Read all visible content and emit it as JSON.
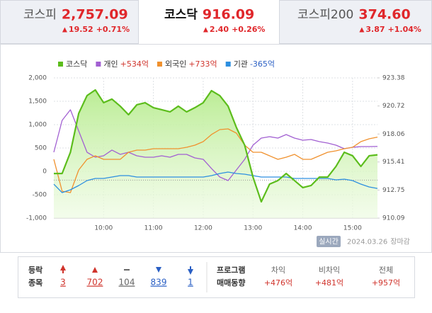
{
  "tabs": [
    {
      "name": "코스피",
      "value": "2,757.09",
      "change": "19.52",
      "rate": "+0.71%"
    },
    {
      "name": "코스닥",
      "value": "916.09",
      "change": "2.40",
      "rate": "+0.26%",
      "active": true
    },
    {
      "name": "코스피200",
      "value": "374.60",
      "change": "3.87",
      "rate": "+1.04%"
    }
  ],
  "chart_data": {
    "type": "line",
    "x": [
      "09:00",
      "09:10",
      "09:20",
      "09:30",
      "09:40",
      "09:50",
      "10:00",
      "10:10",
      "10:20",
      "10:30",
      "10:40",
      "10:50",
      "11:00",
      "11:10",
      "11:20",
      "11:30",
      "11:40",
      "11:50",
      "12:00",
      "12:10",
      "12:20",
      "12:30",
      "12:40",
      "12:50",
      "13:00",
      "13:10",
      "13:20",
      "13:30",
      "13:40",
      "13:50",
      "14:00",
      "14:10",
      "14:20",
      "14:30",
      "14:40",
      "14:50",
      "15:00",
      "15:10",
      "15:20",
      "15:30"
    ],
    "xticks": [
      "10:00",
      "11:00",
      "12:00",
      "13:00",
      "14:00",
      "15:00"
    ],
    "ylim": [
      -1000,
      2000
    ],
    "yticks": [
      {
        "value": 2000,
        "label": "2,000"
      },
      {
        "value": 1500,
        "label": "1,500"
      },
      {
        "value": 1000,
        "label": "1,000"
      },
      500,
      0,
      -500,
      {
        "value": -1000,
        "label": "-1,000"
      }
    ],
    "y2lim": [
      910.09,
      923.38
    ],
    "y2ticks": [
      923.38,
      920.72,
      918.06,
      915.41,
      912.75,
      910.09
    ],
    "y2_reference": 913.69,
    "grid": true,
    "series": [
      {
        "name": "코스닥",
        "color": "#5cbd1c",
        "axis": "y2",
        "fill": true,
        "values": [
          914.32,
          914.32,
          916.33,
          920.02,
          921.7,
          922.24,
          921.03,
          921.37,
          920.7,
          919.89,
          920.83,
          921.03,
          920.56,
          920.36,
          920.16,
          920.7,
          920.16,
          920.56,
          921.03,
          922.17,
          921.7,
          920.7,
          918.68,
          917.0,
          913.98,
          911.64,
          913.31,
          913.65,
          914.32,
          913.65,
          912.98,
          913.18,
          913.98,
          913.98,
          914.99,
          916.33,
          916.0,
          914.99,
          916.0,
          916.09
        ]
      },
      {
        "name": "개인",
        "summary": "+534억",
        "summary_color": "#d0342c",
        "color": "#a260d2",
        "values": [
          409,
          1091,
          1318,
          864,
          409,
          303,
          333,
          455,
          364,
          409,
          333,
          303,
          303,
          333,
          303,
          364,
          364,
          288,
          258,
          61,
          -121,
          -197,
          30,
          258,
          561,
          712,
          742,
          712,
          788,
          712,
          667,
          682,
          636,
          606,
          561,
          485,
          515,
          530,
          530,
          534
        ]
      },
      {
        "name": "외국인",
        "summary": "+733억",
        "summary_color": "#d0342c",
        "color": "#f0912e",
        "values": [
          258,
          -424,
          -455,
          30,
          258,
          333,
          258,
          258,
          258,
          409,
          455,
          455,
          485,
          485,
          485,
          485,
          515,
          561,
          636,
          788,
          894,
          909,
          818,
          561,
          409,
          409,
          333,
          258,
          303,
          364,
          258,
          258,
          333,
          409,
          439,
          485,
          515,
          636,
          697,
          733
        ]
      },
      {
        "name": "기관",
        "summary": "-365억",
        "summary_color": "#2a5fc4",
        "color": "#2d8fe0",
        "values": [
          -273,
          -455,
          -394,
          -303,
          -197,
          -152,
          -152,
          -121,
          -91,
          -91,
          -121,
          -121,
          -121,
          -121,
          -121,
          -121,
          -121,
          -121,
          -121,
          -91,
          -45,
          -15,
          -45,
          -61,
          -91,
          -121,
          -121,
          -121,
          -121,
          -152,
          -152,
          -152,
          -152,
          -152,
          -182,
          -167,
          -197,
          -273,
          -333,
          -365
        ]
      }
    ]
  },
  "footer": {
    "badge": "실시간",
    "date": "2024.03.26",
    "status": "장마감"
  },
  "breadth": {
    "title": [
      "등락",
      "종목"
    ],
    "items": [
      {
        "value": 3,
        "color": "#d0342c"
      },
      {
        "value": 702,
        "color": "#d0342c"
      },
      {
        "value": 104,
        "color": "#666666"
      },
      {
        "value": 839,
        "color": "#2a5fc4"
      },
      {
        "value": 1,
        "color": "#2a5fc4"
      }
    ]
  },
  "program": {
    "title": [
      "프로그램",
      "매매동향"
    ],
    "items": [
      {
        "label": "차익",
        "value": "+476억"
      },
      {
        "label": "비차익",
        "value": "+481억"
      },
      {
        "label": "전체",
        "value": "+957억"
      }
    ]
  }
}
